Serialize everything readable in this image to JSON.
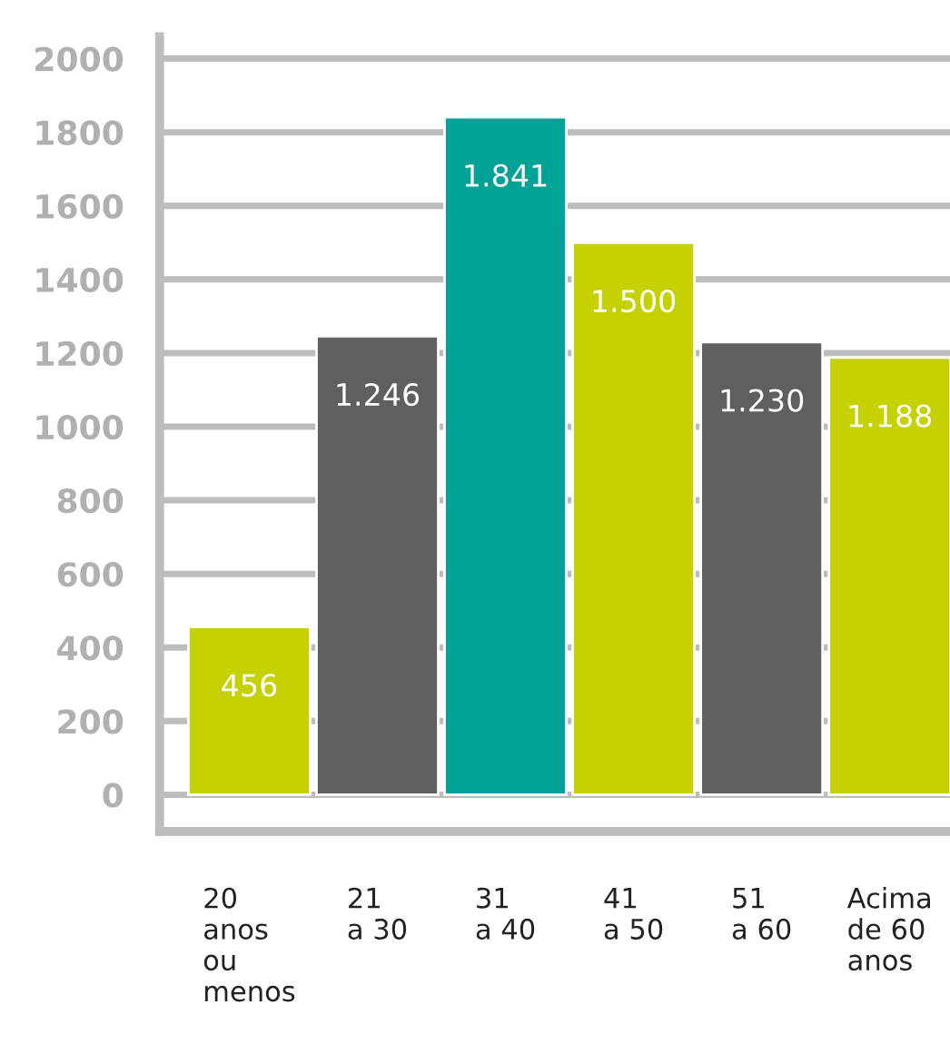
{
  "chart_data": {
    "type": "bar",
    "categories": [
      "20\nanos\nou\nmenos",
      "21\na 30",
      "31\na 40",
      "41\na 50",
      "51\na 60",
      "Acima\nde 60\nanos"
    ],
    "values": [
      456,
      1246,
      1841,
      1500,
      1230,
      1188
    ],
    "colors": [
      "#c5d100",
      "#5f5f5f",
      "#00a396",
      "#c5d100",
      "#5f5f5f",
      "#c5d100"
    ],
    "value_labels": [
      "456",
      "1.246",
      "1.841",
      "1.500",
      "1.230",
      "1.188"
    ],
    "ylim": [
      -100,
      2060
    ],
    "yticks": [
      0,
      200,
      400,
      600,
      800,
      1000,
      1200,
      1400,
      1600,
      1800,
      2000
    ],
    "grid": "y",
    "legend": false
  }
}
